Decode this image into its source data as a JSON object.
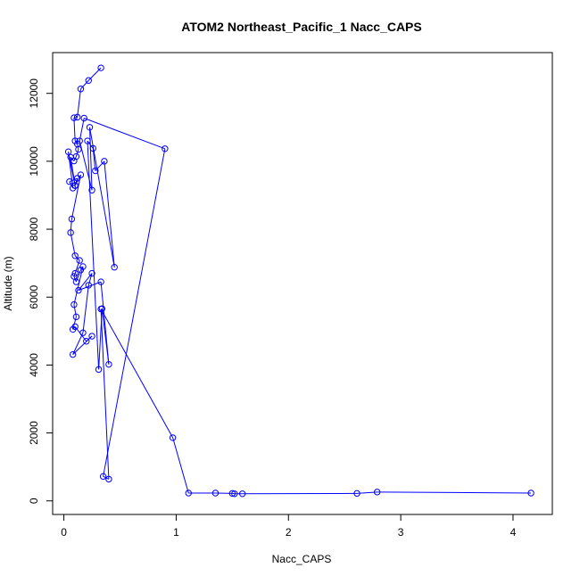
{
  "chart_data": {
    "type": "line",
    "title": "ATOM2 Northeast_Pacific_1 Nacc_CAPS",
    "xlabel": "Nacc_CAPS",
    "ylabel": "Altitude (m)",
    "xlim": [
      -0.1,
      4.35
    ],
    "ylim": [
      -400,
      13200
    ],
    "x_ticks": [
      0,
      1,
      2,
      3,
      4
    ],
    "y_ticks": [
      0,
      2000,
      4000,
      6000,
      8000,
      10000,
      12000
    ],
    "x_tick_labels": [
      "0",
      "1",
      "2",
      "3",
      "4"
    ],
    "y_tick_labels": [
      "0",
      "2000",
      "4000",
      "6000",
      "8000",
      "10000",
      "12000"
    ],
    "series_color": "#0000ff",
    "marker": "open-circle",
    "grid": false,
    "series": [
      {
        "x": [
          0.33,
          0.22,
          0.15,
          0.12,
          0.09,
          0.1,
          0.12,
          0.13,
          0.11,
          0.09,
          0.06,
          0.1,
          0.04,
          0.08,
          0.05,
          0.12,
          0.1,
          0.15,
          0.07,
          0.06,
          0.1,
          0.14,
          0.1,
          0.09,
          0.11,
          0.15,
          0.17,
          0.09,
          0.11,
          0.08,
          0.1,
          0.2,
          0.25,
          0.08,
          0.17,
          0.22,
          0.25,
          0.13,
          0.33,
          0.4,
          0.34,
          0.31,
          0.21,
          0.26,
          0.28,
          0.36,
          0.45,
          0.23,
          0.25,
          0.14,
          0.18,
          0.9,
          0.35,
          0.4,
          0.33,
          0.97,
          1.11,
          1.35,
          1.5,
          1.52,
          1.59,
          2.61,
          2.79,
          4.16
        ],
        "y": [
          12750,
          12380,
          12130,
          11300,
          11280,
          10600,
          10510,
          10350,
          10140,
          10010,
          10120,
          9280,
          10280,
          9210,
          9400,
          9500,
          9290,
          9600,
          8300,
          7900,
          7220,
          7080,
          6700,
          6610,
          6450,
          6800,
          6900,
          5780,
          5420,
          5050,
          5130,
          4700,
          4850,
          4310,
          4950,
          6350,
          6700,
          6200,
          6450,
          4020,
          5660,
          3870,
          10600,
          10380,
          9720,
          10000,
          6880,
          11000,
          9150,
          10600,
          11270,
          10370,
          720,
          640,
          5650,
          1860,
          230,
          230,
          220,
          210,
          210,
          220,
          260,
          230
        ]
      }
    ]
  }
}
